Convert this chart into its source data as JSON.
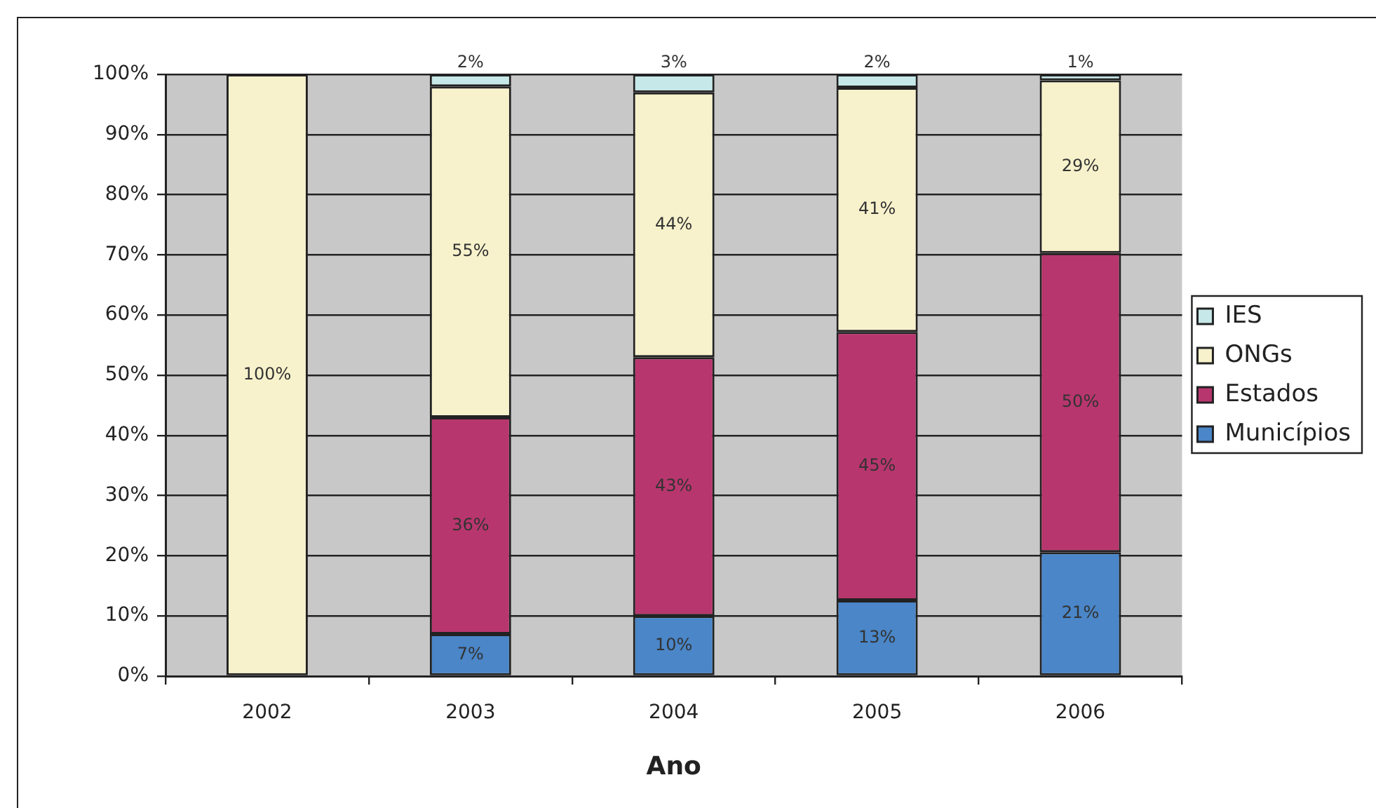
{
  "chart_data": {
    "type": "bar",
    "stacked": true,
    "xlabel": "Ano",
    "categories": [
      "2002",
      "2003",
      "2004",
      "2005",
      "2006"
    ],
    "series": [
      {
        "name": "Municípios",
        "color": "#4a86c8",
        "values": [
          null,
          7,
          10,
          12.6,
          20.6
        ],
        "value_labels": [
          null,
          "7%",
          "10%",
          "13%",
          "21%"
        ]
      },
      {
        "name": "Estados",
        "color": "#b8366e",
        "values": [
          null,
          36,
          43,
          44.6,
          49.7
        ],
        "value_labels": [
          null,
          "36%",
          "43%",
          "45%",
          "50%"
        ]
      },
      {
        "name": "ONGs",
        "color": "#f8f2cc",
        "values": [
          100,
          55,
          44,
          40.6,
          28.7
        ],
        "value_labels": [
          "100%",
          "55%",
          "44%",
          "41%",
          "29%"
        ]
      },
      {
        "name": "IES",
        "color": "#c6e8e8",
        "values": [
          null,
          2,
          3,
          2.2,
          1.0
        ],
        "value_labels": [
          null,
          "2%",
          "3%",
          "2%",
          "1%"
        ]
      }
    ],
    "ylim": [
      0,
      100
    ],
    "yticks": [
      {
        "value": 0,
        "label": "0%"
      },
      {
        "value": 10,
        "label": "10%"
      },
      {
        "value": 20,
        "label": "20%"
      },
      {
        "value": 30,
        "label": "30%"
      },
      {
        "value": 40,
        "label": "40%"
      },
      {
        "value": 50,
        "label": "50%"
      },
      {
        "value": 60,
        "label": "60%"
      },
      {
        "value": 70,
        "label": "70%"
      },
      {
        "value": 80,
        "label": "80%"
      },
      {
        "value": 90,
        "label": "90%"
      },
      {
        "value": 100,
        "label": "100%"
      }
    ],
    "grid": "y",
    "legend": "right"
  }
}
